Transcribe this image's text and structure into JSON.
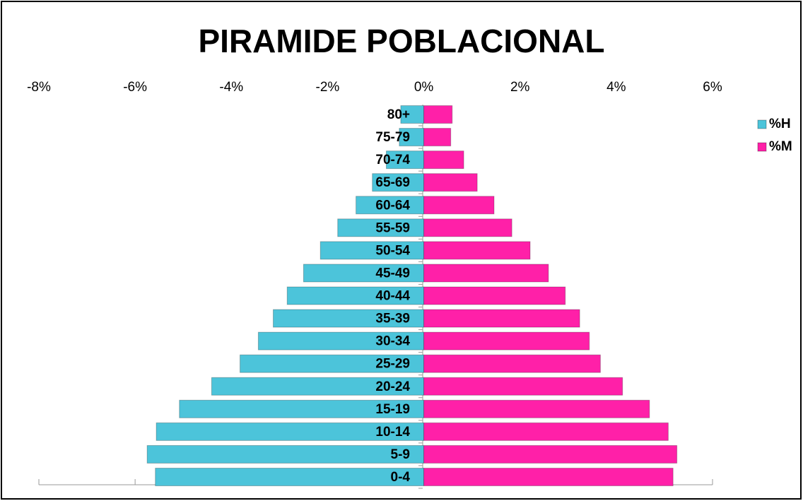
{
  "chart_data": {
    "type": "bar",
    "orientation": "horizontal",
    "title": "PIRAMIDE POBLACIONAL",
    "categories": [
      "0-4",
      "5-9",
      "10-14",
      "15-19",
      "20-24",
      "25-29",
      "30-34",
      "35-39",
      "40-44",
      "45-49",
      "50-54",
      "55-59",
      "60-64",
      "65-69",
      "70-74",
      "75-79",
      "80+"
    ],
    "series": [
      {
        "name": "%H",
        "color": "#4cc4da",
        "values": [
          -5.58,
          -5.75,
          -5.56,
          -5.08,
          -4.41,
          -3.82,
          -3.44,
          -3.13,
          -2.84,
          -2.5,
          -2.15,
          -1.79,
          -1.41,
          -1.07,
          -0.78,
          -0.51,
          -0.48
        ]
      },
      {
        "name": "%M",
        "color": "#ff20a8",
        "values": [
          5.18,
          5.26,
          5.08,
          4.69,
          4.13,
          3.67,
          3.44,
          3.24,
          2.94,
          2.59,
          2.21,
          1.83,
          1.46,
          1.11,
          0.83,
          0.56,
          0.59
        ]
      }
    ],
    "xlim": [
      -8,
      6
    ],
    "xticks": [
      {
        "value": -8,
        "label": "-8%"
      },
      {
        "value": -6,
        "label": "-6%"
      },
      {
        "value": -4,
        "label": "-4%"
      },
      {
        "value": -2,
        "label": "-2%"
      },
      {
        "value": 0,
        "label": "0%"
      },
      {
        "value": 2,
        "label": "2%"
      },
      {
        "value": 4,
        "label": "4%"
      },
      {
        "value": 6,
        "label": "6%"
      }
    ],
    "legend": "right",
    "grid": false
  }
}
